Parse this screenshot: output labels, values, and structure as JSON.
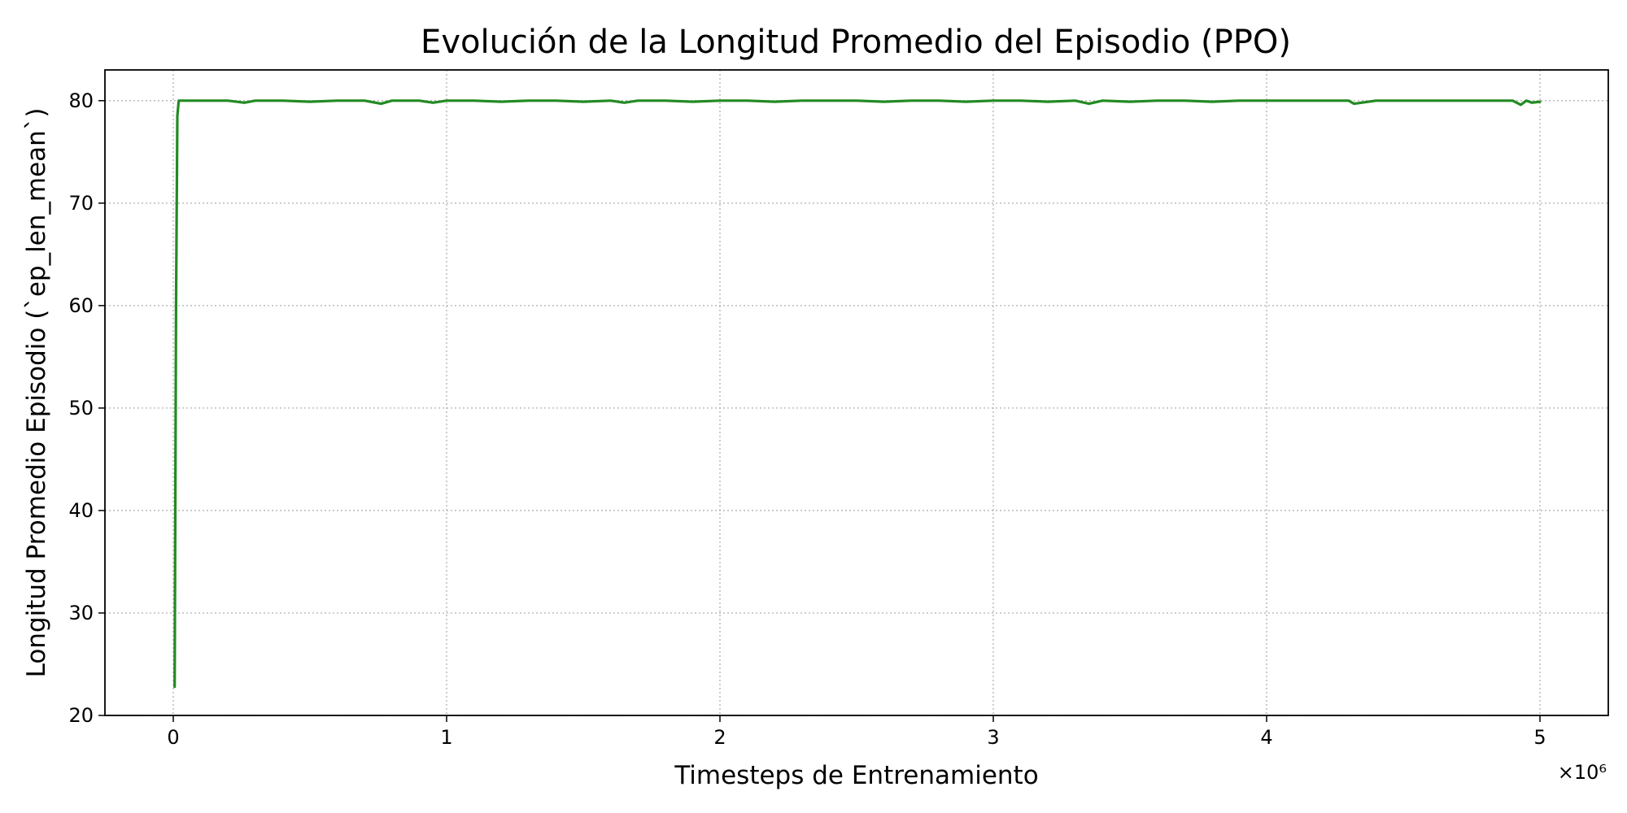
{
  "chart_data": {
    "type": "line",
    "title": "Evolución de la Longitud Promedio del Episodio (PPO)",
    "xlabel": "Timesteps de Entrenamiento",
    "ylabel": "Longitud Promedio Episodio (`ep_len_mean`)",
    "x_offset_label": "×10⁶",
    "xlim": [
      -250000,
      5250000
    ],
    "ylim": [
      20,
      83
    ],
    "xticks": [
      0,
      1000000,
      2000000,
      3000000,
      4000000,
      5000000
    ],
    "xtick_labels": [
      "0",
      "1",
      "2",
      "3",
      "4",
      "5"
    ],
    "yticks": [
      20,
      30,
      40,
      50,
      60,
      70,
      80
    ],
    "ytick_labels": [
      "20",
      "30",
      "40",
      "50",
      "60",
      "70",
      "80"
    ],
    "grid": true,
    "color": "#228b22",
    "series": [
      {
        "x": [
          5000,
          10000,
          15000,
          20000,
          25000,
          50000,
          100000,
          200000,
          260000,
          300000,
          400000,
          500000,
          600000,
          700000,
          760000,
          800000,
          900000,
          950000,
          1000000,
          1100000,
          1200000,
          1300000,
          1400000,
          1500000,
          1600000,
          1650000,
          1700000,
          1800000,
          1900000,
          2000000,
          2100000,
          2200000,
          2300000,
          2400000,
          2500000,
          2600000,
          2700000,
          2800000,
          2900000,
          3000000,
          3100000,
          3200000,
          3300000,
          3350000,
          3400000,
          3500000,
          3600000,
          3700000,
          3800000,
          3900000,
          4000000,
          4100000,
          4200000,
          4300000,
          4320000,
          4400000,
          4500000,
          4600000,
          4700000,
          4800000,
          4900000,
          4930000,
          4950000,
          4970000,
          5000000
        ],
        "y": [
          22.8,
          60,
          78.5,
          80,
          80,
          80,
          80,
          80,
          79.8,
          80,
          80,
          79.9,
          80,
          80,
          79.7,
          80,
          80,
          79.8,
          80,
          80,
          79.9,
          80,
          80,
          79.9,
          80,
          79.8,
          80,
          80,
          79.9,
          80,
          80,
          79.9,
          80,
          80,
          80,
          79.9,
          80,
          80,
          79.9,
          80,
          80,
          79.9,
          80,
          79.7,
          80,
          79.9,
          80,
          80,
          79.9,
          80,
          80,
          80,
          80,
          80,
          79.7,
          80,
          80,
          80,
          80,
          80,
          80,
          79.6,
          80,
          79.8,
          79.9
        ]
      }
    ]
  }
}
